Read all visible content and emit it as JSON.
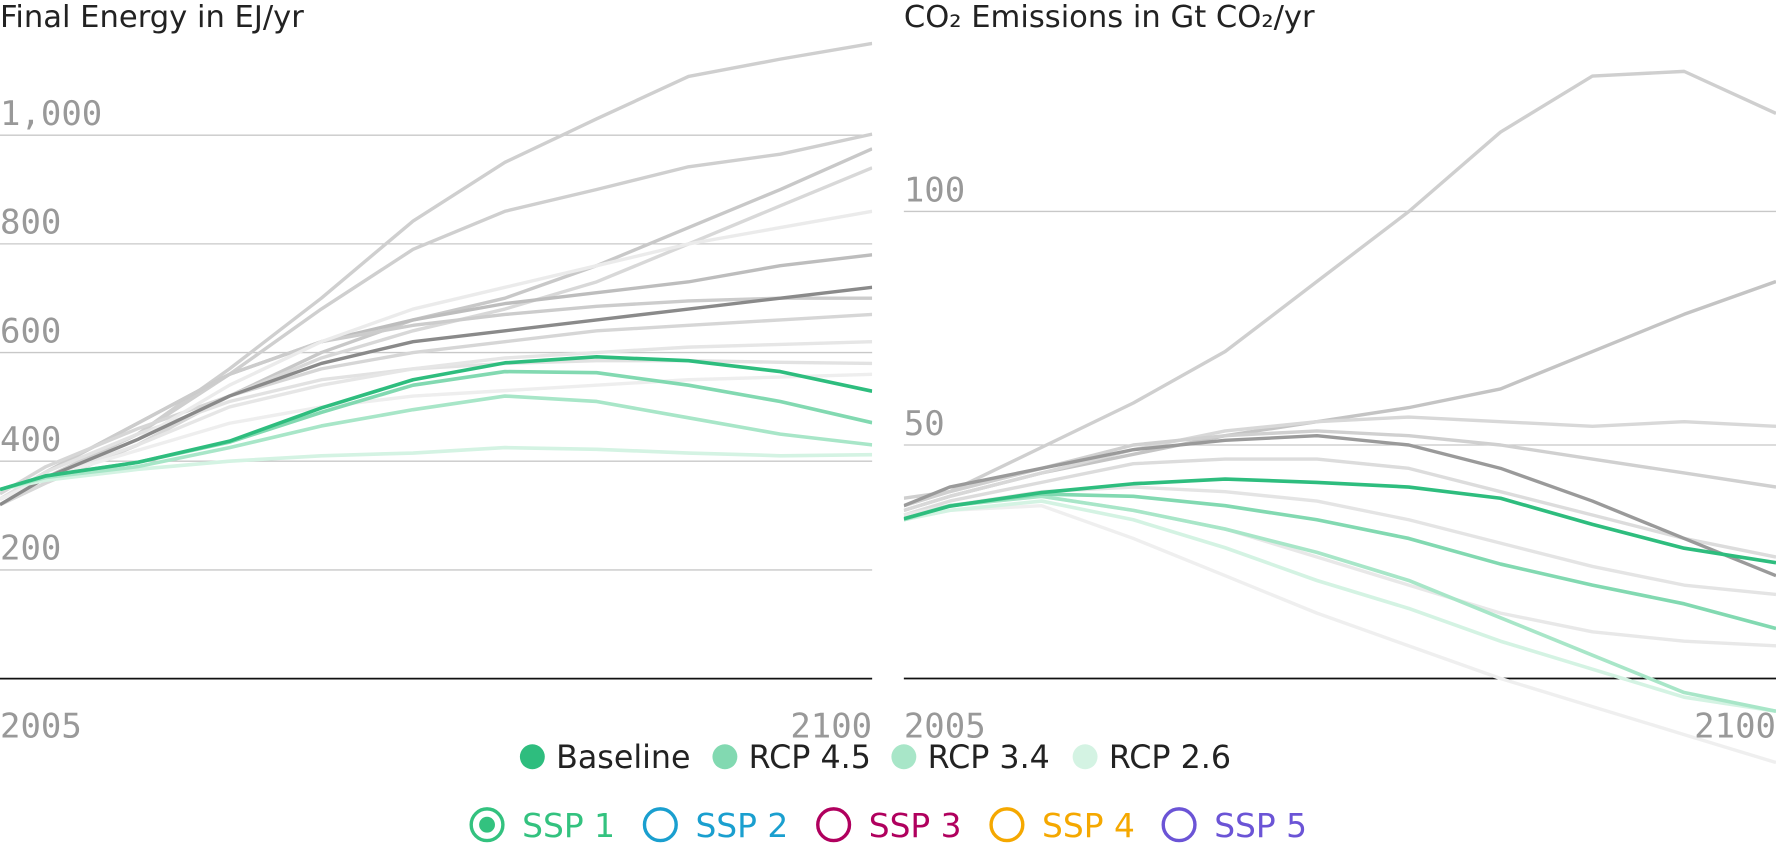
{
  "chart_data": [
    {
      "type": "line",
      "title": "Final Energy in EJ/yr",
      "x": [
        2005,
        2010,
        2020,
        2030,
        2040,
        2050,
        2060,
        2070,
        2080,
        2090,
        2100
      ],
      "xlim": [
        2005,
        2100
      ],
      "xticks": [
        2005,
        2100
      ],
      "ylim": [
        0,
        1180
      ],
      "yticks": [
        200,
        400,
        600,
        800,
        {
          "value": 1000,
          "label": "1,000"
        }
      ],
      "grid": true,
      "background_series": [
        {
          "color": "#cfcfcf",
          "values": [
            330,
            370,
            450,
            570,
            700,
            842,
            950,
            1030,
            1108,
            1140,
            1169
          ]
        },
        {
          "color": "#cfcfcf",
          "values": [
            330,
            370,
            450,
            560,
            680,
            790,
            860,
            900,
            942,
            965,
            1002
          ]
        },
        {
          "color": "#c8c8c8",
          "values": [
            320,
            360,
            430,
            520,
            600,
            660,
            700,
            760,
            830,
            900,
            975
          ]
        },
        {
          "color": "#d8d8d8",
          "values": [
            320,
            360,
            430,
            520,
            590,
            640,
            680,
            730,
            800,
            870,
            940
          ]
        },
        {
          "color": "#bdbdbd",
          "values": [
            330,
            380,
            470,
            560,
            620,
            660,
            690,
            710,
            730,
            760,
            780
          ]
        },
        {
          "color": "#cccccc",
          "values": [
            330,
            380,
            470,
            560,
            620,
            650,
            670,
            685,
            695,
            700,
            700
          ]
        },
        {
          "color": "#d6d6d6",
          "values": [
            340,
            390,
            460,
            520,
            570,
            600,
            620,
            640,
            650,
            660,
            670
          ]
        },
        {
          "color": "#e2e2e2",
          "values": [
            330,
            380,
            450,
            510,
            550,
            570,
            580,
            585,
            585,
            582,
            580
          ]
        },
        {
          "color": "#ebebeb",
          "values": [
            320,
            370,
            440,
            540,
            620,
            680,
            720,
            760,
            800,
            830,
            860
          ]
        },
        {
          "color": "#e6e6e6",
          "values": [
            320,
            370,
            430,
            500,
            540,
            570,
            590,
            600,
            610,
            615,
            620
          ]
        },
        {
          "color": "#eeeeee",
          "values": [
            330,
            370,
            420,
            470,
            500,
            520,
            530,
            540,
            550,
            555,
            560
          ]
        },
        {
          "color": "#8a8a8a",
          "values": [
            320,
            370,
            440,
            520,
            580,
            620,
            640,
            660,
            680,
            700,
            720
          ]
        }
      ],
      "series": [
        {
          "name": "RCP 2.6",
          "color": "#d4f3e3",
          "values": [
            348,
            365,
            385,
            400,
            410,
            415,
            425,
            422,
            415,
            410,
            412
          ]
        },
        {
          "name": "RCP 3.4",
          "color": "#a8e6c8",
          "values": [
            348,
            370,
            390,
            425,
            465,
            495,
            520,
            510,
            480,
            450,
            430
          ]
        },
        {
          "name": "RCP 4.5",
          "color": "#82d9b1",
          "values": [
            348,
            373,
            398,
            435,
            490,
            540,
            565,
            563,
            540,
            510,
            471
          ]
        },
        {
          "name": "Baseline",
          "color": "#2ebd7e",
          "values": [
            348,
            373,
            398,
            437,
            498,
            550,
            581,
            592,
            585,
            565,
            529
          ]
        }
      ]
    },
    {
      "type": "line",
      "title": "CO₂ Emissions in Gt CO₂/yr",
      "x": [
        2005,
        2010,
        2020,
        2030,
        2040,
        2050,
        2060,
        2070,
        2080,
        2090,
        2100
      ],
      "xlim": [
        2005,
        2100
      ],
      "xticks": [
        2005,
        2100
      ],
      "ylim": [
        -25,
        138
      ],
      "yticks": [
        50,
        100
      ],
      "grid": true,
      "background_series": [
        {
          "color": "#cfcfcf",
          "values": [
            38.6,
            40,
            49.5,
            59,
            70,
            85,
            100,
            117,
            129,
            130,
            121
          ]
        },
        {
          "color": "#c4c4c4",
          "values": [
            36,
            39,
            44,
            48,
            52,
            55,
            58,
            62,
            70,
            78,
            85
          ]
        },
        {
          "color": "#d8d8d8",
          "values": [
            36,
            39,
            44,
            49,
            53,
            55,
            56,
            55,
            54,
            55,
            54
          ]
        },
        {
          "color": "#d0d0d0",
          "values": [
            37,
            40,
            45,
            50,
            52,
            53,
            52,
            50,
            47,
            44,
            41
          ]
        },
        {
          "color": "#dcdcdc",
          "values": [
            35,
            38,
            42,
            46,
            47,
            47,
            45,
            40,
            35,
            30,
            26
          ]
        },
        {
          "color": "#e4e4e4",
          "values": [
            35,
            37,
            40,
            41,
            40,
            38,
            34,
            29,
            24,
            20,
            18
          ]
        },
        {
          "color": "#e8e8e8",
          "values": [
            35,
            37,
            39,
            36,
            32,
            26,
            20,
            14,
            10,
            8,
            7
          ]
        },
        {
          "color": "#efefef",
          "values": [
            34,
            36,
            37,
            30,
            22,
            14,
            7,
            0,
            -6,
            -12,
            -18
          ]
        },
        {
          "color": "#9a9a9a",
          "values": [
            37,
            41,
            45,
            49,
            51,
            52,
            50,
            45,
            38,
            30,
            22
          ]
        }
      ],
      "series": [
        {
          "color": "#d4f3e3",
          "values": [
            34,
            36,
            38,
            34,
            28,
            21,
            15,
            8,
            2,
            -4,
            -7
          ]
        },
        {
          "color": "#a8e6c8",
          "values": [
            34,
            37,
            39,
            36,
            32,
            27,
            21,
            13,
            5,
            -3,
            -7
          ]
        },
        {
          "color": "#82d9b1",
          "values": [
            34.2,
            37,
            39.5,
            39,
            37,
            34,
            30,
            24.5,
            20,
            16,
            10.7
          ]
        },
        {
          "color": "#2ebd7e",
          "values": [
            34.2,
            36.9,
            39.8,
            41.7,
            42.7,
            42,
            41,
            38.6,
            33,
            27.9,
            24.8
          ]
        }
      ]
    }
  ],
  "controls": [
    {
      "label": "SSP 1",
      "color": "#33c27f",
      "selected": true
    },
    {
      "label": "SSP 2",
      "color": "#1a9fcf",
      "selected": false
    },
    {
      "label": "SSP 3",
      "color": "#b0005e",
      "selected": false
    },
    {
      "label": "SSP 4",
      "color": "#f5a800",
      "selected": false
    },
    {
      "label": "SSP 5",
      "color": "#6b54d6",
      "selected": false
    }
  ]
}
